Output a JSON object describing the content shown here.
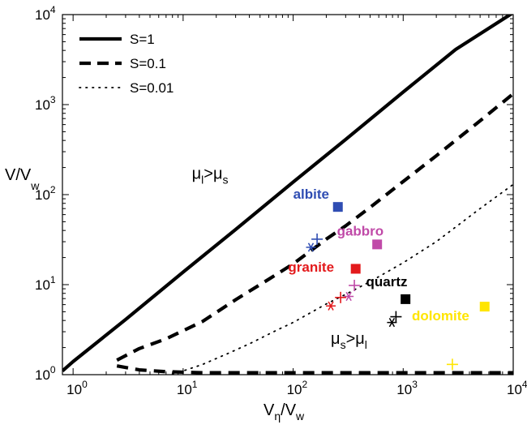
{
  "chart_data": {
    "type": "line",
    "xscale": "log",
    "yscale": "log",
    "xlim": [
      0.8,
      10000
    ],
    "ylim": [
      1,
      10000
    ],
    "grid": false,
    "legend_position": "top-left",
    "xlabel": {
      "main": "V",
      "sub1": "η",
      "mid": "/V",
      "sub2": "w"
    },
    "ylabel": {
      "main": "V/V",
      "sub": "w"
    },
    "x_ticks": [
      {
        "value": 1,
        "base": "10",
        "exp": "0"
      },
      {
        "value": 10,
        "base": "10",
        "exp": "1"
      },
      {
        "value": 100,
        "base": "10",
        "exp": "2"
      },
      {
        "value": 1000,
        "base": "10",
        "exp": "3"
      },
      {
        "value": 10000,
        "base": "10",
        "exp": "4"
      }
    ],
    "y_ticks": [
      {
        "value": 1,
        "base": "10",
        "exp": "0"
      },
      {
        "value": 10,
        "base": "10",
        "exp": "1"
      },
      {
        "value": 100,
        "base": "10",
        "exp": "2"
      },
      {
        "value": 1000,
        "base": "10",
        "exp": "3"
      },
      {
        "value": 10000,
        "base": "10",
        "exp": "4"
      }
    ],
    "series": [
      {
        "name": "S=1",
        "style": "solid",
        "x": [
          0.8,
          1,
          3,
          10,
          30,
          100,
          300,
          1000,
          3000,
          10000
        ],
        "y": [
          1.1,
          1.4,
          4.1,
          13.8,
          41,
          138,
          410,
          1380,
          4100,
          10500
        ]
      },
      {
        "name": "S=0.1",
        "style": "dashed",
        "x": [
          2.5,
          4,
          7,
          15,
          30,
          60,
          100,
          200,
          300,
          500,
          1000,
          2000,
          5000,
          10000
        ],
        "y": [
          1.45,
          1.95,
          2.5,
          3.9,
          6.8,
          11.5,
          17,
          32,
          45,
          72,
          140,
          270,
          660,
          1320
        ]
      },
      {
        "name": "S=0.1 lower branch",
        "style": "dashed",
        "x": [
          2.5,
          4,
          7,
          15,
          100,
          1000,
          10000
        ],
        "y": [
          1.25,
          1.13,
          1.08,
          1.05,
          1.05,
          1.05,
          1.05
        ]
      },
      {
        "name": "S=0.01",
        "style": "dotted",
        "x": [
          8,
          10,
          15,
          25,
          40,
          70,
          100,
          200,
          300,
          500,
          1000,
          2000,
          5000,
          10000
        ],
        "y": [
          1.02,
          1.1,
          1.3,
          1.7,
          2.2,
          3.1,
          3.8,
          6.1,
          7.8,
          10.8,
          17.5,
          30,
          70,
          130
        ]
      }
    ],
    "legend": [
      {
        "label": "S=1",
        "style": "solid"
      },
      {
        "label": "S=0.1",
        "style": "dashed"
      },
      {
        "label": "S=0.01",
        "style": "dotted"
      }
    ],
    "materials": [
      {
        "name": "albite",
        "color": "#2f4db3",
        "square": {
          "x": 255,
          "y": 73
        },
        "star": {
          "x": 145,
          "y": 26
        },
        "plus": {
          "x": 165,
          "y": 32
        },
        "label_at": {
          "x": 100,
          "y": 90
        }
      },
      {
        "name": "gabbro",
        "color": "#c04aa8",
        "square": {
          "x": 580,
          "y": 28
        },
        "star": {
          "x": 320,
          "y": 7.4
        },
        "plus": {
          "x": 360,
          "y": 9.8
        },
        "label_at": {
          "x": 250,
          "y": 35
        }
      },
      {
        "name": "granite",
        "color": "#e31a1c",
        "square": {
          "x": 370,
          "y": 15
        },
        "star": {
          "x": 220,
          "y": 5.8
        },
        "plus": {
          "x": 270,
          "y": 7.2
        },
        "label_at": {
          "x": 90,
          "y": 14
        }
      },
      {
        "name": "quartz",
        "color": "#000000",
        "square": {
          "x": 1050,
          "y": 6.9
        },
        "star": {
          "x": 790,
          "y": 3.8
        },
        "plus": {
          "x": 860,
          "y": 4.4
        },
        "label_at": {
          "x": 460,
          "y": 9.6
        }
      },
      {
        "name": "dolomite",
        "color": "#ffe500",
        "square": {
          "x": 5500,
          "y": 5.7
        },
        "star": null,
        "plus": {
          "x": 2800,
          "y": 1.3
        },
        "label_at": {
          "x": 1200,
          "y": 4.0
        }
      }
    ],
    "annotations": [
      {
        "main": "μ",
        "sub": "l",
        "op": ">",
        "main2": "μ",
        "sub2": "s",
        "x": 12,
        "y": 150
      },
      {
        "main": "μ",
        "sub": "s",
        "op": ">",
        "main2": "μ",
        "sub2": "l",
        "x": 220,
        "y": 2.2
      }
    ]
  }
}
